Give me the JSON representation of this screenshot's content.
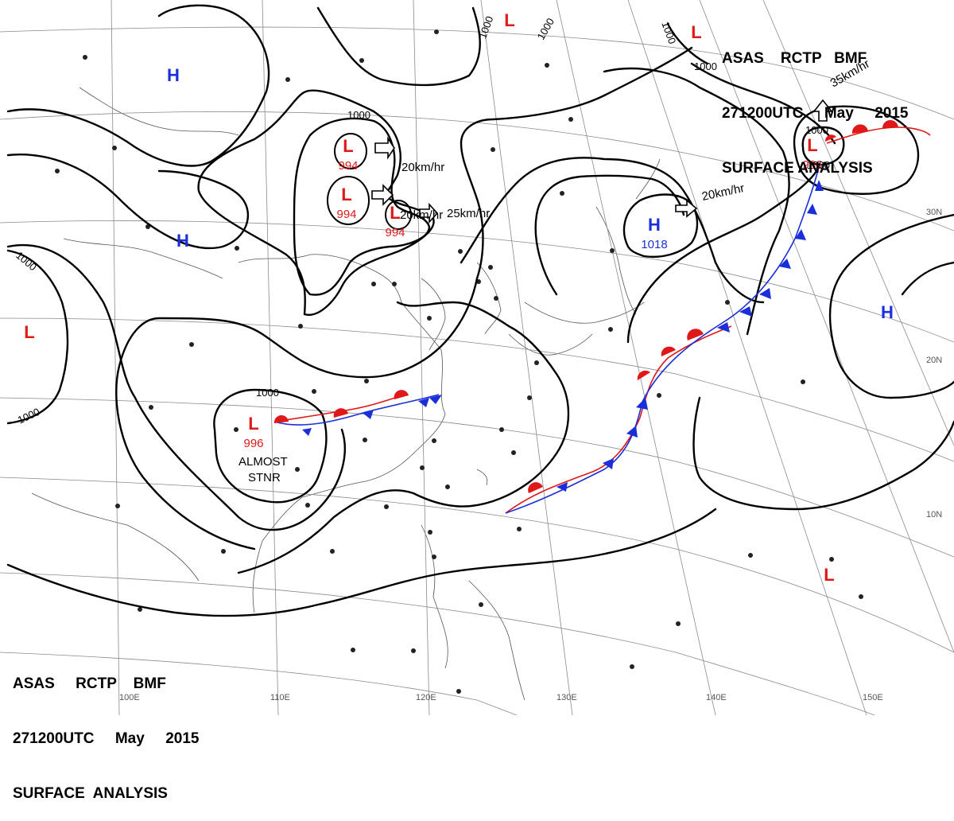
{
  "header": {
    "line1": "ASAS    RCTP   BMF",
    "line2": "271200UTC     May     2015",
    "line3": "SURFACE ANALYSIS"
  },
  "footer": {
    "line1": "ASAS     RCTP    BMF",
    "line2": "271200UTC     May     2015",
    "line3": "SURFACE  ANALYSIS"
  },
  "colors": {
    "high": "#1a2fd9",
    "low": "#e01818",
    "cold_front": "#1a2fd9",
    "warm_front": "#e01818",
    "isobar": "#000000"
  },
  "longitude_labels": [
    "100E",
    "110E",
    "120E",
    "130E",
    "140E",
    "150E"
  ],
  "latitude_labels": [
    "30N",
    "20N",
    "10N"
  ],
  "pressure_systems": [
    {
      "type": "H",
      "pressure": ""
    },
    {
      "type": "H",
      "pressure": ""
    },
    {
      "type": "L",
      "pressure": ""
    },
    {
      "type": "L",
      "pressure": "994"
    },
    {
      "type": "L",
      "pressure": "994"
    },
    {
      "type": "L",
      "pressure": "994"
    },
    {
      "type": "L",
      "pressure": "996"
    },
    {
      "type": "H",
      "pressure": "1018"
    },
    {
      "type": "L",
      "pressure": ""
    },
    {
      "type": "L",
      "pressure": "986"
    },
    {
      "type": "L",
      "pressure": ""
    },
    {
      "type": "H",
      "pressure": ""
    },
    {
      "type": "L",
      "pressure": ""
    }
  ],
  "isobar_labels": [
    "1000",
    "1000",
    "1000",
    "1000",
    "1000",
    "1000",
    "1000",
    "1000",
    "1000",
    "1000"
  ],
  "motion_labels": [
    "20km/hr",
    "20km/hr",
    "25km/hr",
    "20km/hr",
    "35km/hr"
  ],
  "annotations": [
    "ALMOST",
    "STNR"
  ]
}
